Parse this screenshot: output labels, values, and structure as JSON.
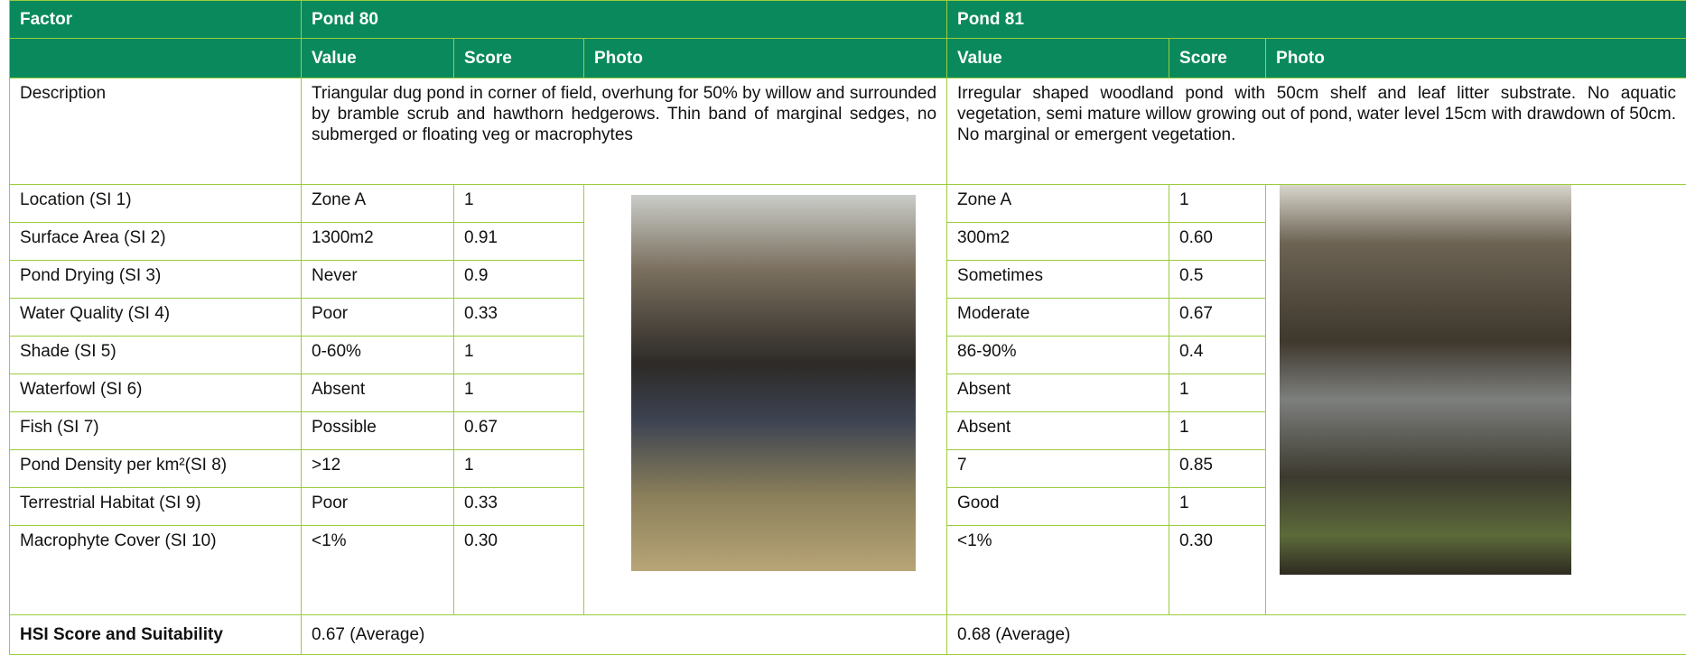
{
  "header": {
    "factor": "Factor",
    "ponds": [
      "Pond 80",
      "Pond 81"
    ],
    "subheaders": [
      "Value",
      "Score",
      "Photo"
    ]
  },
  "description": {
    "label": "Description",
    "ponds": [
      "Triangular dug pond in corner of field, overhung for 50% by willow and surrounded by bramble scrub and hawthorn hedgerows. Thin band of marginal sedges, no submerged or floating veg or macrophytes",
      "Irregular shaped woodland pond with 50cm shelf and leaf litter substrate. No aquatic vegetation, semi mature willow growing out of pond, water level 15cm with drawdown of 50cm. No marginal or emergent vegetation."
    ]
  },
  "rows": [
    [
      "Location (SI 1)",
      "Zone A",
      "1",
      "Zone A",
      "1"
    ],
    [
      "Surface Area (SI 2)",
      "1300m2",
      "0.91",
      "300m2",
      "0.60"
    ],
    [
      "Pond Drying (SI 3)",
      "Never",
      "0.9",
      "Sometimes",
      "0.5"
    ],
    [
      "Water Quality (SI 4)",
      "Poor",
      "0.33",
      "Moderate",
      "0.67"
    ],
    [
      "Shade (SI 5)",
      "0-60%",
      "1",
      "86-90%",
      "0.4"
    ],
    [
      "Waterfowl (SI 6)",
      "Absent",
      "1",
      "Absent",
      "1"
    ],
    [
      "Fish (SI 7)",
      "Possible",
      "0.67",
      "Absent",
      "1"
    ],
    [
      "Pond Density per km²(SI 8)",
      ">12",
      "1",
      "7",
      "0.85"
    ],
    [
      "Terrestrial Habitat (SI 9)",
      "Poor",
      "0.33",
      "Good",
      "1"
    ],
    [
      "Macrophyte Cover (SI 10)",
      "<1%",
      "0.30",
      "<1%",
      "0.30"
    ]
  ],
  "hsi": {
    "label": "HSI Score and Suitability",
    "ponds": [
      "0.67 (Average)",
      "0.68 (Average)"
    ]
  }
}
